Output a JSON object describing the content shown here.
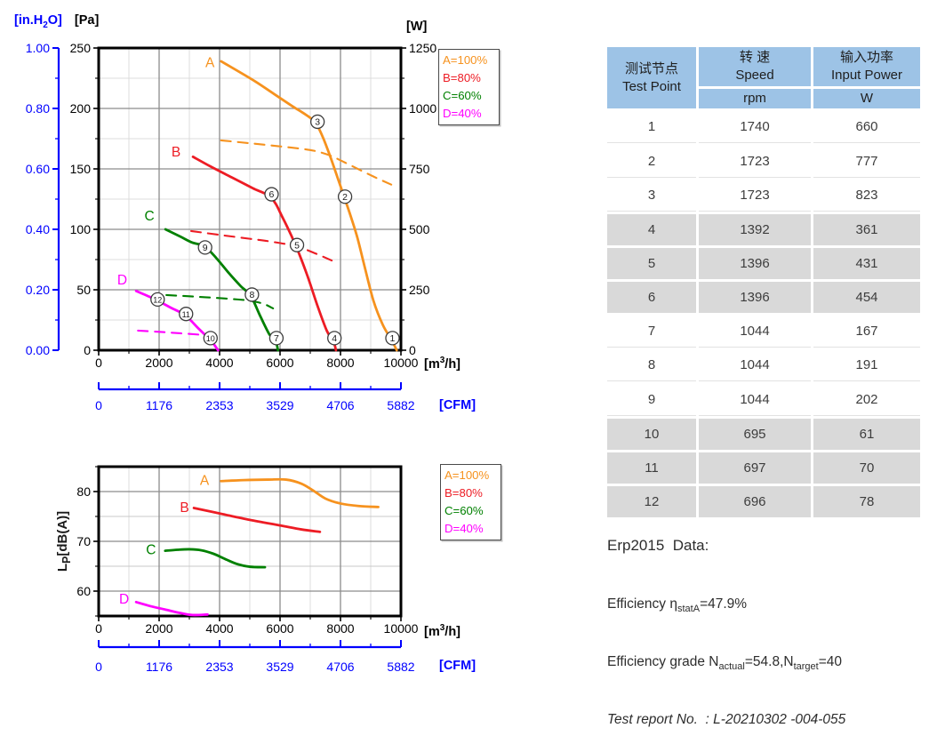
{
  "palette": {
    "curve_a_orange": "#F6921E",
    "curve_b_red": "#ED1C24",
    "curve_c_green": "#008000",
    "curve_d_magenta": "#FF00FF",
    "axis_blue": "#0000FF",
    "grid_major": "#8C8C8C",
    "grid_minor": "#DCDCDC",
    "table_header_bg": "#9DC3E6",
    "table_row_gray": "#D9D9D9"
  },
  "chart_data": [
    {
      "id": "pressure-power",
      "type": "line",
      "y_left_secondary_parts": {
        "pre": "[in.H",
        "sub": "2",
        "post": "O]"
      },
      "y_left_unit": "[Pa]",
      "y_right_unit": "[W]",
      "x_unit_parts": {
        "pre": "[m",
        "sup": "3",
        "post": "/h]"
      },
      "x2_unit": "[CFM]",
      "xlim": [
        0,
        10000
      ],
      "ylim_left": [
        0,
        250
      ],
      "ylim_right": [
        0,
        1250
      ],
      "x_ticks": [
        0,
        2000,
        4000,
        6000,
        8000,
        10000
      ],
      "x2_ticks": [
        0,
        1176,
        2353,
        3529,
        4706,
        5882
      ],
      "y_left_ticks": [
        0,
        50,
        100,
        150,
        200,
        250
      ],
      "y_left_secondary_ticks": [
        "0.00",
        "0.20",
        "0.40",
        "0.60",
        "0.80",
        "1.00"
      ],
      "y_right_ticks": [
        0,
        250,
        500,
        750,
        1000,
        1250
      ],
      "grid": {
        "x_major": 2000,
        "x_minor": 1000,
        "y_major": 50,
        "y_minor": 25
      },
      "legend": [
        {
          "label": "A=100%",
          "color": "#F6921E"
        },
        {
          "label": "B=80%",
          "color": "#ED1C24"
        },
        {
          "label": "C=60%",
          "color": "#008000"
        },
        {
          "label": "D=40%",
          "color": "#FF00FF"
        }
      ],
      "series": [
        {
          "name": "A-pressure",
          "color": "#F6921E",
          "dash": false,
          "axis": "left",
          "points": [
            [
              4050,
              239
            ],
            [
              4600,
              231
            ],
            [
              5200,
              222
            ],
            [
              5800,
              212
            ],
            [
              6400,
              202
            ],
            [
              6900,
              194
            ],
            [
              7180,
              188
            ],
            [
              7420,
              176
            ],
            [
              7650,
              161
            ],
            [
              7900,
              143
            ],
            [
              8120,
              127
            ],
            [
              8350,
              110
            ],
            [
              8560,
              93
            ],
            [
              8800,
              69
            ],
            [
              9090,
              41
            ],
            [
              9400,
              21
            ],
            [
              9700,
              8
            ],
            [
              9860,
              0
            ]
          ]
        },
        {
          "name": "A-power",
          "color": "#F6921E",
          "dash": true,
          "axis": "right",
          "points": [
            [
              4050,
              868
            ],
            [
              5000,
              856
            ],
            [
              6000,
              843
            ],
            [
              7000,
              828
            ],
            [
              7600,
              808
            ],
            [
              8120,
              778
            ],
            [
              8700,
              742
            ],
            [
              9200,
              712
            ],
            [
              9680,
              685
            ]
          ]
        },
        {
          "name": "B-pressure",
          "color": "#ED1C24",
          "dash": false,
          "axis": "left",
          "points": [
            [
              3120,
              160
            ],
            [
              3700,
              152
            ],
            [
              4400,
              143
            ],
            [
              5100,
              134
            ],
            [
              5710,
              126
            ],
            [
              6100,
              109
            ],
            [
              6530,
              86
            ],
            [
              6900,
              62
            ],
            [
              7250,
              36
            ],
            [
              7550,
              16
            ],
            [
              7770,
              7
            ],
            [
              7850,
              0
            ]
          ]
        },
        {
          "name": "B-power",
          "color": "#ED1C24",
          "dash": true,
          "axis": "right",
          "points": [
            [
              3060,
              493
            ],
            [
              4000,
              477
            ],
            [
              5000,
              461
            ],
            [
              5710,
              449
            ],
            [
              6530,
              430
            ],
            [
              7100,
              404
            ],
            [
              7710,
              371
            ]
          ]
        },
        {
          "name": "C-pressure",
          "color": "#008000",
          "dash": false,
          "axis": "left",
          "points": [
            [
              2210,
              100
            ],
            [
              2700,
              94
            ],
            [
              3100,
              89
            ],
            [
              3500,
              86
            ],
            [
              3900,
              76
            ],
            [
              4300,
              64
            ],
            [
              4700,
              53
            ],
            [
              5030,
              45
            ],
            [
              5350,
              28
            ],
            [
              5650,
              13
            ],
            [
              5860,
              7
            ],
            [
              5930,
              0
            ]
          ]
        },
        {
          "name": "C-power",
          "color": "#008000",
          "dash": true,
          "axis": "right",
          "points": [
            [
              2240,
              228
            ],
            [
              3000,
              223
            ],
            [
              3800,
              217
            ],
            [
              4600,
              210
            ],
            [
              5030,
              204
            ],
            [
              5450,
              192
            ],
            [
              5770,
              173
            ]
          ]
        },
        {
          "name": "D-pressure",
          "color": "#FF00FF",
          "dash": false,
          "axis": "left",
          "points": [
            [
              1240,
              49
            ],
            [
              1700,
              44
            ],
            [
              1950,
              41
            ],
            [
              2400,
              35
            ],
            [
              2860,
              29
            ],
            [
              3300,
              18
            ],
            [
              3710,
              8
            ],
            [
              3950,
              0
            ]
          ]
        },
        {
          "name": "D-power",
          "color": "#FF00FF",
          "dash": true,
          "axis": "right",
          "points": [
            [
              1300,
              81
            ],
            [
              2000,
              76
            ],
            [
              2700,
              70
            ],
            [
              3500,
              63
            ]
          ]
        }
      ],
      "curve_labels": [
        {
          "text": "A",
          "x": 3680,
          "y": 238,
          "color": "#F6921E"
        },
        {
          "text": "B",
          "x": 2560,
          "y": 164,
          "color": "#ED1C24"
        },
        {
          "text": "C",
          "x": 1680,
          "y": 111,
          "color": "#008000"
        },
        {
          "text": "D",
          "x": 780,
          "y": 58,
          "color": "#FF00FF"
        }
      ],
      "point_markers": [
        {
          "label": "1",
          "x": 9720,
          "y": 10
        },
        {
          "label": "2",
          "x": 8150,
          "y": 127
        },
        {
          "label": "3",
          "x": 7240,
          "y": 189
        },
        {
          "label": "4",
          "x": 7800,
          "y": 10
        },
        {
          "label": "5",
          "x": 6560,
          "y": 87
        },
        {
          "label": "6",
          "x": 5720,
          "y": 129
        },
        {
          "label": "7",
          "x": 5880,
          "y": 10
        },
        {
          "label": "8",
          "x": 5070,
          "y": 46
        },
        {
          "label": "9",
          "x": 3520,
          "y": 85
        },
        {
          "label": "10",
          "x": 3700,
          "y": 10
        },
        {
          "label": "11",
          "x": 2890,
          "y": 30
        },
        {
          "label": "12",
          "x": 1950,
          "y": 42
        }
      ]
    },
    {
      "id": "noise",
      "type": "line",
      "ylabel_parts": {
        "pre": "L",
        "sub": "P",
        "post": "[dB(A)]"
      },
      "x_unit_parts": {
        "pre": "[m",
        "sup": "3",
        "post": "/h]"
      },
      "x2_unit": "[CFM]",
      "xlim": [
        0,
        10000
      ],
      "ylim": [
        55,
        85
      ],
      "x_ticks": [
        0,
        2000,
        4000,
        6000,
        8000,
        10000
      ],
      "x2_ticks": [
        0,
        1176,
        2353,
        3529,
        4706,
        5882
      ],
      "y_ticks": [
        60,
        70,
        80
      ],
      "grid": {
        "x_major": 2000,
        "x_minor": 1000,
        "y_step": 5
      },
      "legend": [
        {
          "label": "A=100%",
          "color": "#F6921E"
        },
        {
          "label": "B=80%",
          "color": "#ED1C24"
        },
        {
          "label": "C=60%",
          "color": "#008000"
        },
        {
          "label": "D=40%",
          "color": "#FF00FF"
        }
      ],
      "series": [
        {
          "name": "A-noise",
          "color": "#F6921E",
          "dash": false,
          "points": [
            [
              4050,
              82.1
            ],
            [
              4800,
              82.3
            ],
            [
              5600,
              82.4
            ],
            [
              6200,
              82.4
            ],
            [
              6700,
              81.6
            ],
            [
              7100,
              80.2
            ],
            [
              7500,
              78.6
            ],
            [
              8000,
              77.6
            ],
            [
              8600,
              77.1
            ],
            [
              9250,
              76.9
            ]
          ]
        },
        {
          "name": "B-noise",
          "color": "#ED1C24",
          "dash": false,
          "points": [
            [
              3150,
              76.7
            ],
            [
              4000,
              75.6
            ],
            [
              5000,
              74.3
            ],
            [
              6000,
              73.2
            ],
            [
              6700,
              72.4
            ],
            [
              7320,
              71.9
            ]
          ]
        },
        {
          "name": "C-noise",
          "color": "#008000",
          "dash": false,
          "points": [
            [
              2200,
              68.1
            ],
            [
              2600,
              68.3
            ],
            [
              3000,
              68.4
            ],
            [
              3400,
              68.2
            ],
            [
              3800,
              67.5
            ],
            [
              4200,
              66.4
            ],
            [
              4600,
              65.4
            ],
            [
              5000,
              64.9
            ],
            [
              5500,
              64.8
            ]
          ]
        },
        {
          "name": "D-noise",
          "color": "#FF00FF",
          "dash": false,
          "points": [
            [
              1240,
              57.8
            ],
            [
              1700,
              57.0
            ],
            [
              2200,
              56.3
            ],
            [
              2700,
              55.6
            ],
            [
              3100,
              55.2
            ],
            [
              3600,
              55.3
            ]
          ]
        }
      ],
      "curve_labels": [
        {
          "text": "A",
          "x": 3500,
          "y": 82.2,
          "color": "#F6921E"
        },
        {
          "text": "B",
          "x": 2840,
          "y": 76.8,
          "color": "#ED1C24"
        },
        {
          "text": "C",
          "x": 1730,
          "y": 68.3,
          "color": "#008000"
        },
        {
          "text": "D",
          "x": 840,
          "y": 58.4,
          "color": "#FF00FF"
        }
      ]
    }
  ],
  "table": {
    "header": {
      "test_point_zh": "测试节点",
      "test_point_en": "Test Point",
      "speed_zh": "转 速",
      "speed_en": "Speed",
      "speed_unit": "rpm",
      "power_zh": "输入功率",
      "power_en": "Input Power",
      "power_unit": "W"
    },
    "rows": [
      [
        "1",
        "1740",
        "660"
      ],
      [
        "2",
        "1723",
        "777"
      ],
      [
        "3",
        "1723",
        "823"
      ],
      [
        "4",
        "1392",
        "361"
      ],
      [
        "5",
        "1396",
        "431"
      ],
      [
        "6",
        "1396",
        "454"
      ],
      [
        "7",
        "1044",
        "167"
      ],
      [
        "8",
        "1044",
        "191"
      ],
      [
        "9",
        "1044",
        "202"
      ],
      [
        "10",
        "695",
        "61"
      ],
      [
        "11",
        "697",
        "70"
      ],
      [
        "12",
        "696",
        "78"
      ]
    ]
  },
  "erp": {
    "title": "Erp2015  Data:",
    "eff_pre": "Efficiency η",
    "eff_sub": "statA",
    "eff_post": "=47.9%",
    "grade_pre": "Efficiency grade N",
    "grade_sub1": "actual",
    "grade_mid": "=54.8,N",
    "grade_sub2": "target",
    "grade_post": "=40",
    "report": "Test report No.  : L-20210302 -004-055"
  }
}
